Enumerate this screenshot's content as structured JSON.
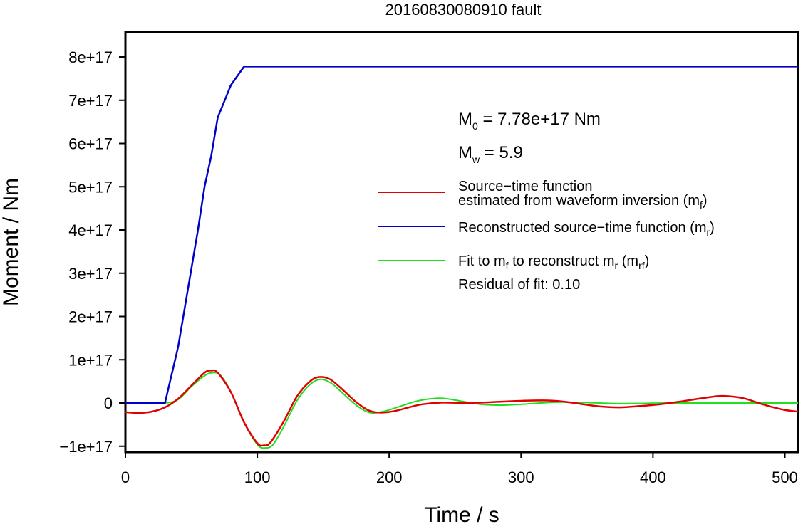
{
  "chart_data": {
    "type": "line",
    "title": "20160830080910 fault",
    "xlabel": "Time / s",
    "ylabel": "Moment / Nm",
    "xlim": [
      0,
      510
    ],
    "ylim": [
      -1.1e+17,
      8.55e+17
    ],
    "x_ticks": [
      0,
      100,
      200,
      300,
      400,
      500
    ],
    "x_tick_labels": [
      "0",
      "100",
      "200",
      "300",
      "400",
      "500"
    ],
    "y_ticks": [
      -1e+17,
      0,
      1e+17,
      2e+17,
      3e+17,
      4e+17,
      5e+17,
      6e+17,
      7e+17,
      8e+17
    ],
    "y_tick_labels": [
      "−1e+17",
      "0",
      "1e+17",
      "2e+17",
      "3e+17",
      "4e+17",
      "5e+17",
      "6e+17",
      "7e+17",
      "8e+17"
    ],
    "grid": false,
    "annotations": {
      "m0_main": "M",
      "m0_sub": "0",
      "m0_rest": " = 7.78e+17 Nm",
      "mw_main": "M",
      "mw_sub": "w",
      "mw_rest": " = 5.9",
      "residual": "Residual of fit: 0.10"
    },
    "legend": {
      "placement": "right",
      "red_line1": "Source−time function",
      "red_line2_a": "estimated from waveform inversion (m",
      "red_line2_sub": "f",
      "red_line2_b": ")",
      "blue_a": "Reconstructed source−time function (m",
      "blue_sub": "r",
      "blue_b": ")",
      "green_a": "Fit to m",
      "green_sub1": "f",
      "green_b": " to reconstruct m",
      "green_sub2": "r",
      "green_c": " (m",
      "green_sub3": "rf",
      "green_d": ")"
    },
    "series": [
      {
        "key": "mf",
        "color": "#e00000",
        "x": [
          0,
          10,
          20,
          30,
          40,
          50,
          60,
          65,
          70,
          80,
          90,
          100,
          105,
          110,
          120,
          130,
          140,
          147,
          155,
          165,
          175,
          185,
          195,
          205,
          215,
          225,
          240,
          255,
          270,
          285,
          300,
          315,
          330,
          345,
          360,
          375,
          390,
          405,
          420,
          435,
          450,
          460,
          470,
          480,
          490,
          500,
          510
        ],
        "y": [
          -2.1e+16,
          -2.3e+16,
          -2e+16,
          -1e+16,
          1e+16,
          4e+16,
          7e+16,
          7.5e+16,
          7e+16,
          2.5e+16,
          -4.5e+16,
          -9.3e+16,
          -9.8e+16,
          -9.1e+16,
          -4.3e+16,
          1.5e+16,
          5e+16,
          6e+16,
          5.5e+16,
          3e+16,
          2000000000000000.0,
          -1.8e+16,
          -2.2e+16,
          -1.8e+16,
          -1e+16,
          -3000000000000000.0,
          1000000000000000.0,
          0,
          1000000000000000.0,
          3000000000000000.0,
          5000000000000000.0,
          6000000000000000.0,
          4000000000000000.0,
          -2000000000000000.0,
          -8000000000000000.0,
          -1e+16,
          -7000000000000000.0,
          -3000000000000000.0,
          3000000000000000.0,
          1e+16,
          1.6e+16,
          1.5e+16,
          1e+16,
          0,
          -9000000000000000.0,
          -1.6e+16,
          -2e+16
        ]
      },
      {
        "key": "mr",
        "color": "#0000c8",
        "x": [
          0,
          30,
          40,
          50,
          55,
          60,
          65,
          70,
          80,
          90,
          510
        ],
        "y": [
          0,
          0,
          1.3e+17,
          3.1e+17,
          4e+17,
          5e+17,
          5.7e+17,
          6.6e+17,
          7.35e+17,
          7.78e+17,
          7.78e+17
        ]
      },
      {
        "key": "mrf",
        "color": "#22dd22",
        "x": [
          0,
          20,
          30,
          40,
          50,
          60,
          66,
          72,
          80,
          90,
          100,
          106,
          112,
          120,
          130,
          140,
          148,
          156,
          165,
          175,
          185,
          195,
          205,
          215,
          225,
          240,
          255,
          270,
          285,
          300,
          315,
          330,
          350,
          370,
          390,
          410,
          430,
          450,
          470,
          490,
          510
        ],
        "y": [
          0,
          0,
          0,
          8000000000000000.0,
          3.8e+16,
          6.3e+16,
          7e+16,
          6.4e+16,
          2.5e+16,
          -4.5e+16,
          -9.6e+16,
          -1.04e+17,
          -9.6e+16,
          -5.5e+16,
          5000000000000000.0,
          4.3e+16,
          5.5e+16,
          4.6e+16,
          2.2e+16,
          -5000000000000000.0,
          -2.2e+16,
          -2e+16,
          -1.1e+16,
          -1000000000000000.0,
          7000000000000000.0,
          1.1e+16,
          4000000000000000.0,
          -3000000000000000.0,
          -5000000000000000.0,
          -3000000000000000.0,
          0,
          2000000000000000.0,
          1000000000000000.0,
          -1000000000000000.0,
          -1000000000000000.0,
          0,
          0,
          0,
          0,
          0,
          0
        ]
      }
    ]
  }
}
